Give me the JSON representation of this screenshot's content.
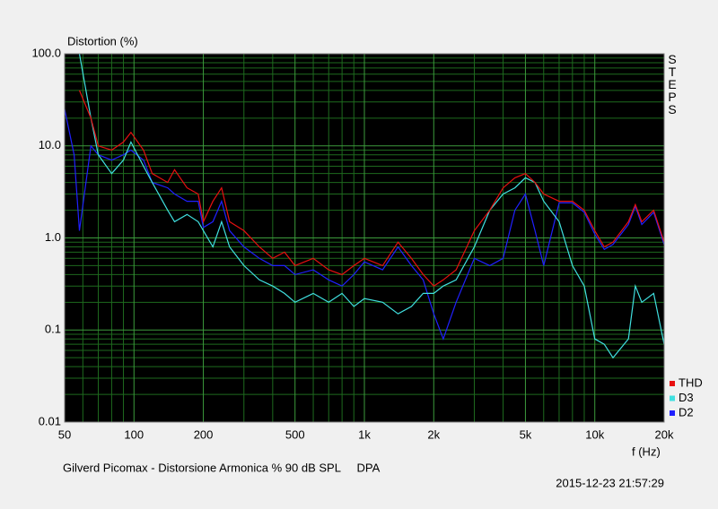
{
  "chart_data": {
    "type": "line",
    "y_label": "Distortion (%)",
    "x_label": "f (Hz)",
    "side_label": "STEPS",
    "footer": "Gilverd Picomax - Distorsione Armonica % 90 dB SPL     DPA",
    "timestamp": "2015-12-23 21:57:29",
    "log_x": true,
    "log_y": true,
    "grid": true,
    "legend": "bottom-right",
    "xlim": [
      50,
      20000
    ],
    "ylim": [
      0.01,
      100
    ],
    "xticks": [
      50,
      100,
      200,
      500,
      {
        "value": 1000,
        "label": "1k"
      },
      {
        "value": 2000,
        "label": "2k"
      },
      {
        "value": 5000,
        "label": "5k"
      },
      {
        "value": 10000,
        "label": "10k"
      },
      {
        "value": 20000,
        "label": "20k"
      }
    ],
    "yticks": [
      {
        "value": 100,
        "label": "100.0"
      },
      {
        "value": 10,
        "label": "10.0"
      },
      {
        "value": 1,
        "label": "1.0"
      },
      {
        "value": 0.1,
        "label": "0.1"
      },
      0.01
    ],
    "xminor_ticks": [
      60,
      70,
      80,
      90,
      300,
      400,
      600,
      700,
      800,
      900,
      3000,
      4000,
      6000,
      7000,
      8000,
      9000
    ],
    "yminor_ticks": [
      0.02,
      0.03,
      0.04,
      0.05,
      0.06,
      0.07,
      0.08,
      0.09,
      0.2,
      0.3,
      0.4,
      0.5,
      0.6,
      0.7,
      0.8,
      0.9,
      2,
      3,
      4,
      5,
      6,
      7,
      8,
      9,
      20,
      30,
      40,
      50,
      60,
      70,
      80,
      90
    ],
    "x": [
      50,
      55,
      58,
      65,
      70,
      80,
      90,
      97,
      110,
      120,
      140,
      150,
      170,
      190,
      200,
      220,
      240,
      260,
      300,
      350,
      400,
      450,
      500,
      600,
      700,
      800,
      900,
      1000,
      1200,
      1400,
      1600,
      1800,
      2000,
      2200,
      2500,
      3000,
      3500,
      4000,
      4500,
      5000,
      5500,
      6000,
      7000,
      8000,
      9000,
      10000,
      11000,
      12000,
      14000,
      15000,
      16000,
      18000,
      20000
    ],
    "series": [
      {
        "name": "THD",
        "color": "#e81010",
        "values": [
          null,
          null,
          40,
          20,
          10,
          9,
          11,
          14,
          9,
          5,
          4,
          5.5,
          3.5,
          3,
          1.5,
          2.5,
          3.5,
          1.5,
          1.2,
          0.8,
          0.6,
          0.7,
          0.5,
          0.6,
          0.45,
          0.4,
          0.5,
          0.6,
          0.5,
          0.9,
          0.6,
          0.4,
          0.3,
          0.35,
          0.45,
          1.2,
          2,
          3.5,
          4.5,
          5,
          4,
          3,
          2.5,
          2.5,
          2,
          1.2,
          0.8,
          0.9,
          1.5,
          2.3,
          1.5,
          2,
          0.9
        ]
      },
      {
        "name": "D3",
        "color": "#40e0e0",
        "values": [
          null,
          null,
          100,
          20,
          8,
          5,
          7,
          11,
          6,
          4,
          2,
          1.5,
          1.8,
          1.5,
          1.2,
          0.8,
          1.5,
          0.8,
          0.5,
          0.35,
          0.3,
          0.25,
          0.2,
          0.25,
          0.2,
          0.25,
          0.18,
          0.22,
          0.2,
          0.15,
          0.18,
          0.25,
          0.25,
          0.3,
          0.35,
          0.8,
          2,
          3,
          3.5,
          4.5,
          4,
          2.5,
          1.5,
          0.5,
          0.3,
          0.08,
          0.07,
          0.05,
          0.08,
          0.3,
          0.2,
          0.25,
          0.07
        ]
      },
      {
        "name": "D2",
        "color": "#2020ff",
        "values": [
          25,
          8,
          1.2,
          10,
          8,
          7,
          8,
          9,
          7,
          4,
          3.5,
          3,
          2.5,
          2.5,
          1.3,
          1.5,
          2.5,
          1.2,
          0.8,
          0.6,
          0.5,
          0.5,
          0.4,
          0.45,
          0.35,
          0.3,
          0.4,
          0.55,
          0.45,
          0.8,
          0.5,
          0.35,
          0.15,
          0.08,
          0.2,
          0.6,
          0.5,
          0.6,
          2,
          3,
          1.2,
          0.5,
          2.4,
          2.4,
          1.9,
          1.1,
          0.75,
          0.85,
          1.4,
          2.2,
          1.4,
          1.9,
          0.85
        ]
      }
    ]
  }
}
